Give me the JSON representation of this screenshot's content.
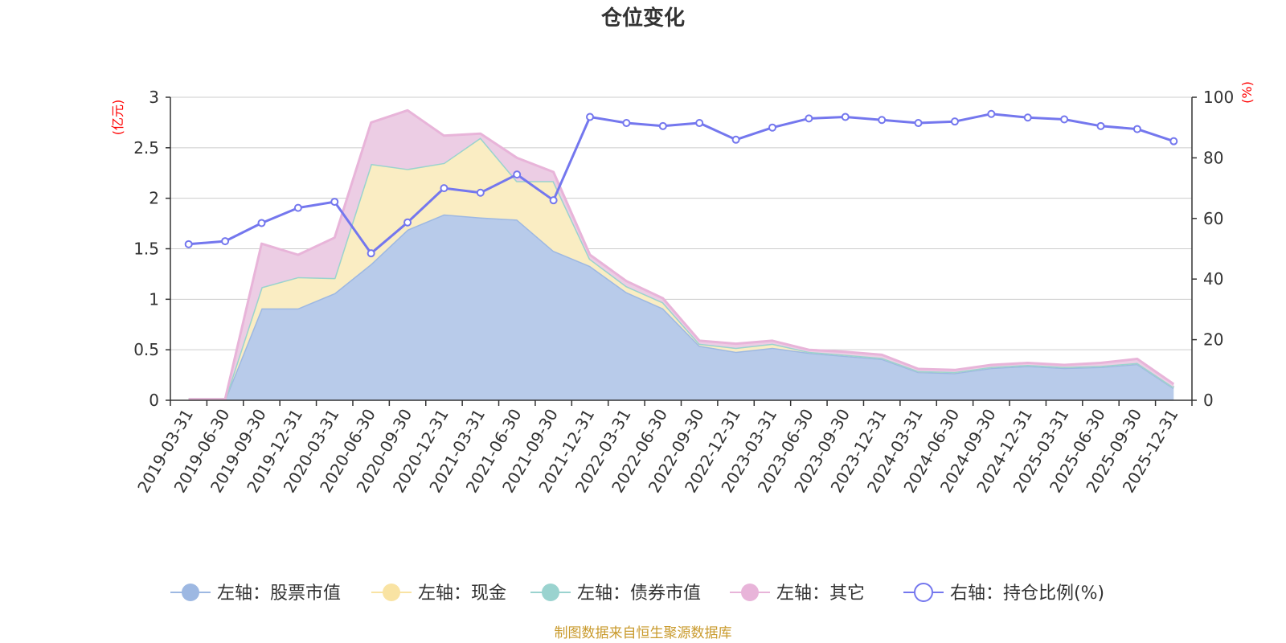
{
  "chart_data": {
    "type": "area",
    "title": "仓位变化",
    "source": "制图数据来自恒生聚源数据库",
    "left_axis": {
      "unit": "(亿元)",
      "min": 0,
      "max": 3,
      "ticks": [
        "0",
        "0.5",
        "1",
        "1.5",
        "2",
        "2.5",
        "3"
      ]
    },
    "right_axis": {
      "unit": "(%)",
      "min": 0,
      "max": 100,
      "ticks": [
        "0",
        "20",
        "40",
        "60",
        "80",
        "100"
      ]
    },
    "categories": [
      "2019-03-31",
      "2019-06-30",
      "2019-09-30",
      "2019-12-31",
      "2020-03-31",
      "2020-06-30",
      "2020-09-30",
      "2020-12-31",
      "2021-03-31",
      "2021-06-30",
      "2021-09-30",
      "2021-12-31",
      "2022-03-31",
      "2022-06-30",
      "2022-09-30",
      "2022-12-31",
      "2023-03-31",
      "2023-06-30",
      "2023-09-30",
      "2023-12-31",
      "2024-03-31",
      "2024-06-30",
      "2024-09-30",
      "2024-12-31",
      "2025-03-31",
      "2025-06-30",
      "2025-09-30",
      "2025-12-31"
    ],
    "series": [
      {
        "name": "左轴：股票市值",
        "axis": "left",
        "kind": "area",
        "color": "#9db8e2",
        "fill": "#b8cbea",
        "values": [
          0.01,
          0.01,
          0.91,
          0.91,
          1.06,
          1.35,
          1.69,
          1.84,
          1.81,
          1.79,
          1.48,
          1.33,
          1.07,
          0.91,
          0.54,
          0.48,
          0.52,
          0.47,
          0.44,
          0.41,
          0.28,
          0.27,
          0.32,
          0.34,
          0.32,
          0.33,
          0.36,
          0.12
        ]
      },
      {
        "name": "左轴：现金",
        "axis": "left",
        "kind": "area",
        "color": "#f9e3a3",
        "fill": "#faedc3",
        "values": [
          0,
          0,
          0.21,
          0.31,
          0.15,
          0.99,
          0.6,
          0.51,
          0.79,
          0.38,
          0.69,
          0.07,
          0.06,
          0.06,
          0.02,
          0.04,
          0.04,
          0.01,
          0.01,
          0.01,
          0.01,
          0.01,
          0.01,
          0.01,
          0.01,
          0.01,
          0.01,
          0.01
        ]
      },
      {
        "name": "左轴：债券市值",
        "axis": "left",
        "kind": "area",
        "color": "#9ad3cf",
        "fill": "#c2e6e3",
        "values": [
          0,
          0,
          0,
          0,
          0,
          0,
          0,
          0,
          0,
          0,
          0,
          0,
          0,
          0,
          0,
          0,
          0,
          0,
          0,
          0,
          0,
          0,
          0,
          0,
          0,
          0,
          0,
          0
        ]
      },
      {
        "name": "左轴：其它",
        "axis": "left",
        "kind": "area",
        "color": "#e8b4d9",
        "fill": "#eccde4",
        "values": [
          0,
          0,
          0.43,
          0.22,
          0.4,
          0.41,
          0.58,
          0.27,
          0.04,
          0.23,
          0.09,
          0.04,
          0.05,
          0.04,
          0.03,
          0.04,
          0.03,
          0.02,
          0.03,
          0.03,
          0.02,
          0.02,
          0.02,
          0.02,
          0.02,
          0.03,
          0.04,
          0.03
        ]
      },
      {
        "name": "右轴：持仓比例(%)",
        "axis": "right",
        "kind": "line",
        "color": "#7477ee",
        "values": [
          51.5,
          52.5,
          58.5,
          63.5,
          65.5,
          48.5,
          58.7,
          70.0,
          68.5,
          74.5,
          66.0,
          93.5,
          91.5,
          90.5,
          91.5,
          86.0,
          90.0,
          93.0,
          93.5,
          92.5,
          91.5,
          92.0,
          94.5,
          93.3,
          92.7,
          90.5,
          89.5,
          85.5
        ]
      }
    ]
  }
}
